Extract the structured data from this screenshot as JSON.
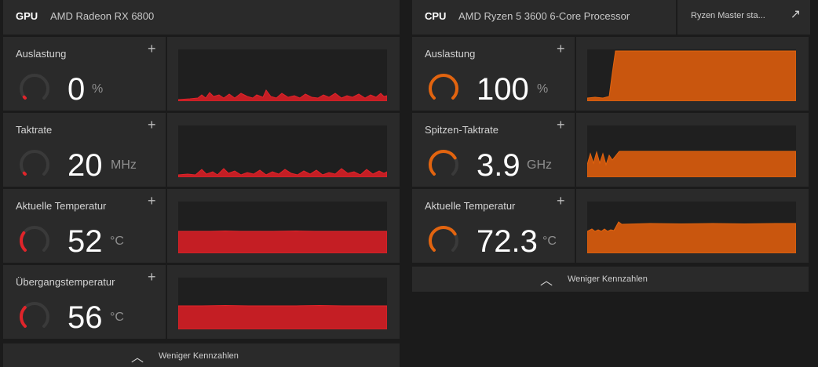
{
  "colors": {
    "gpu_accent": "#e0242a",
    "cpu_accent": "#e2640f",
    "gauge_track": "#3a3a3a"
  },
  "gpu": {
    "label": "GPU",
    "name": "AMD Radeon RX 6800",
    "footer": "Weniger Kennzahlen",
    "metrics": [
      {
        "title": "Auslastung",
        "value": "0",
        "unit": "%",
        "level": 0.02
      },
      {
        "title": "Taktrate",
        "value": "20",
        "unit": "MHz",
        "level": 0.02
      },
      {
        "title": "Aktuelle Temperatur",
        "value": "52",
        "unit": "°C",
        "level": 0.3
      },
      {
        "title": "Übergangstemperatur",
        "value": "56",
        "unit": "°C",
        "level": 0.33
      }
    ]
  },
  "cpu": {
    "label": "CPU",
    "name": "AMD Ryzen 5 3600 6-Core Processor",
    "external_link": "Ryzen Master sta...",
    "footer": "Weniger Kennzahlen",
    "metrics": [
      {
        "title": "Auslastung",
        "value": "100",
        "unit": "%",
        "level": 1.0
      },
      {
        "title": "Spitzen-Taktrate",
        "value": "3.9",
        "unit": "GHz",
        "level": 0.72
      },
      {
        "title": "Aktuelle Temperatur",
        "value": "72.3",
        "unit": "°C",
        "level": 0.72
      }
    ]
  },
  "icons": {
    "add": "plus-icon",
    "expand": "chevron-up-icon",
    "open": "external-arrow-icon"
  }
}
